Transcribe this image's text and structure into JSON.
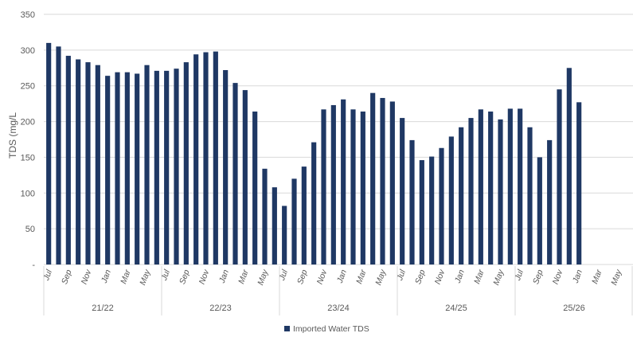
{
  "colors": {
    "bar": "#1f3864",
    "grid": "#d9d9d9",
    "axis_text": "#595959"
  },
  "chart_data": {
    "type": "bar",
    "ylabel": "TDS (mg/L",
    "ylim": [
      0,
      350
    ],
    "y_ticks": [
      0,
      50,
      100,
      150,
      200,
      250,
      300,
      350
    ],
    "y_tick_labels": [
      "-",
      "50",
      "100",
      "150",
      "200",
      "250",
      "300",
      "350"
    ],
    "grid": true,
    "legend_position": "bottom",
    "x_tick_labels": [
      "Jul",
      "",
      "Sep",
      "",
      "Nov",
      "",
      "Jan",
      "",
      "Mar",
      "",
      "May",
      "",
      "Jul",
      "",
      "Sep",
      "",
      "Nov",
      "",
      "Jan",
      "",
      "Mar",
      "",
      "May",
      "",
      "Jul",
      "",
      "Sep",
      "",
      "Nov",
      "",
      "Jan",
      "",
      "Mar",
      "",
      "May",
      "",
      "Jul",
      "",
      "Sep",
      "",
      "Nov",
      "",
      "Jan",
      "",
      "Mar",
      "",
      "May",
      "",
      "Jul",
      "",
      "Sep",
      "",
      "Nov",
      "",
      "Jan",
      "",
      "Mar",
      "",
      "May",
      ""
    ],
    "groups": [
      {
        "label": "21/22",
        "count": 12
      },
      {
        "label": "22/23",
        "count": 12
      },
      {
        "label": "23/24",
        "count": 12
      },
      {
        "label": "24/25",
        "count": 12
      },
      {
        "label": "25/26",
        "count": 12
      }
    ],
    "series": [
      {
        "name": "Imported Water TDS",
        "values": [
          310,
          305,
          292,
          287,
          283,
          279,
          264,
          269,
          269,
          267,
          279,
          271,
          271,
          274,
          283,
          294,
          297,
          298,
          272,
          254,
          244,
          214,
          134,
          108,
          82,
          120,
          137,
          171,
          217,
          223,
          231,
          217,
          214,
          240,
          233,
          228,
          205,
          174,
          146,
          151,
          163,
          179,
          192,
          205,
          217,
          214,
          203,
          218,
          218,
          192,
          150,
          174,
          245,
          275,
          227,
          null,
          null,
          null,
          null,
          null
        ]
      }
    ]
  }
}
